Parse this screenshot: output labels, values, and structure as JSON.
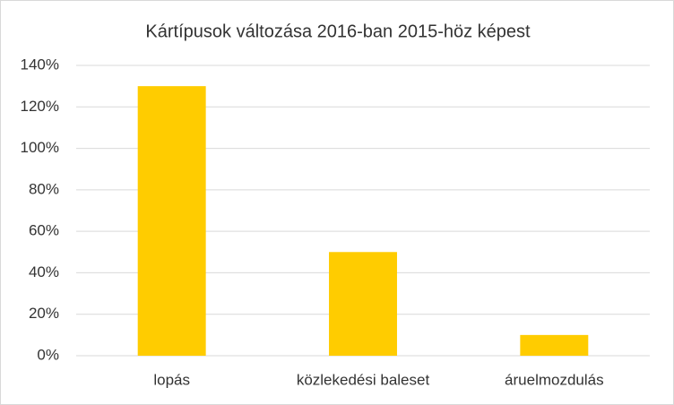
{
  "chart_data": {
    "type": "bar",
    "title": "Kártípusok változása 2016-ban 2015-höz képest",
    "categories": [
      "lopás",
      "közlekedési baleset",
      "áruelmozdulás"
    ],
    "values": [
      130,
      50,
      10
    ],
    "color": "#ffcc00",
    "ylim": [
      0,
      140
    ],
    "yticks": [
      {
        "value": 0,
        "label": "0%"
      },
      {
        "value": 20,
        "label": "20%"
      },
      {
        "value": 40,
        "label": "40%"
      },
      {
        "value": 60,
        "label": "60%"
      },
      {
        "value": 80,
        "label": "80%"
      },
      {
        "value": 100,
        "label": "100%"
      },
      {
        "value": 120,
        "label": "120%"
      },
      {
        "value": 140,
        "label": "140%"
      }
    ],
    "grid": true
  }
}
